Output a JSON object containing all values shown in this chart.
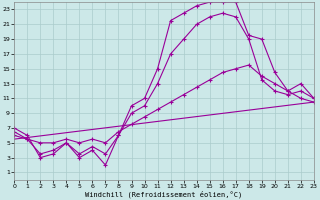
{
  "xlabel": "Windchill (Refroidissement éolien,°C)",
  "bg_color": "#cce8e8",
  "grid_color": "#aacccc",
  "line_color": "#990099",
  "xlim": [
    0,
    23
  ],
  "ylim": [
    0,
    24
  ],
  "xticks": [
    0,
    1,
    2,
    3,
    4,
    5,
    6,
    7,
    8,
    9,
    10,
    11,
    12,
    13,
    14,
    15,
    16,
    17,
    18,
    19,
    20,
    21,
    22,
    23
  ],
  "yticks": [
    1,
    3,
    5,
    7,
    9,
    11,
    13,
    15,
    17,
    19,
    21,
    23
  ],
  "line1_x": [
    0,
    1,
    2,
    3,
    4,
    5,
    6,
    7,
    8,
    9,
    10,
    11,
    12,
    13,
    14,
    15,
    16,
    17,
    18,
    19,
    20,
    21,
    22,
    23
  ],
  "line1_y": [
    7,
    6,
    3,
    3.5,
    5,
    3,
    4,
    2,
    6,
    10,
    11,
    15,
    21.5,
    22.5,
    23.5,
    24,
    24,
    24,
    19.5,
    19,
    14.5,
    12,
    11,
    10.5
  ],
  "line2_x": [
    0,
    1,
    2,
    3,
    4,
    5,
    6,
    7,
    8,
    9,
    10,
    11,
    12,
    13,
    14,
    15,
    16,
    17,
    18,
    19,
    20,
    21,
    22,
    23
  ],
  "line2_y": [
    6.5,
    5.5,
    3.5,
    4,
    5,
    3.5,
    4.5,
    3.5,
    6,
    9,
    10,
    13,
    17,
    19,
    21,
    22,
    22.5,
    22,
    19,
    13.5,
    12,
    11.5,
    12,
    11
  ],
  "line3_x": [
    0,
    1,
    2,
    3,
    4,
    5,
    6,
    7,
    8,
    9,
    10,
    11,
    12,
    13,
    14,
    15,
    16,
    17,
    18,
    19,
    20,
    21,
    22,
    23
  ],
  "line3_y": [
    6,
    5.5,
    5,
    5,
    5.5,
    5,
    5.5,
    5,
    6.5,
    7.5,
    8.5,
    9.5,
    10.5,
    11.5,
    12.5,
    13.5,
    14.5,
    15,
    15.5,
    14,
    13,
    12,
    13,
    11
  ],
  "line4_x": [
    0,
    23
  ],
  "line4_y": [
    5.5,
    10.5
  ],
  "marker_size": 3.0,
  "lw": 0.8
}
